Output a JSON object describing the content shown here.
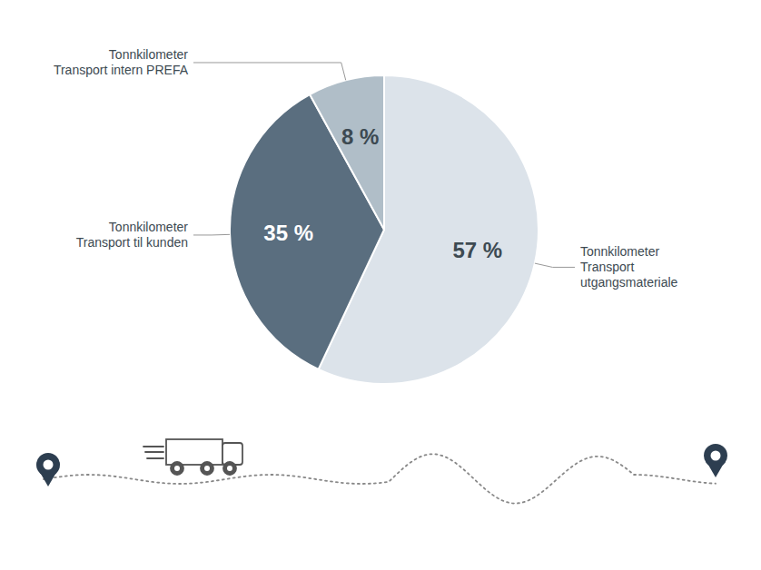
{
  "chart_data": {
    "type": "pie",
    "categories": [
      "Tonnkilometer\nTransport\nutgangsmateriale",
      "Tonnkilometer\nTransport til kunden",
      "Tonnkilometer\nTransport intern PREFA"
    ],
    "values": [
      57,
      35,
      8
    ],
    "value_labels": [
      "57 %",
      "35 %",
      "8 %"
    ],
    "colors": [
      "#dce3ea",
      "#5a6e7f",
      "#b0bec8"
    ],
    "data_labels": true
  }
}
